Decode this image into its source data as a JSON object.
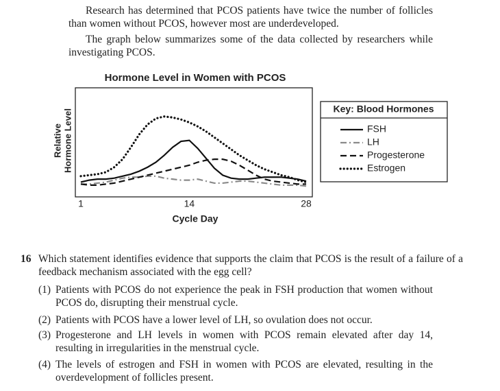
{
  "intro": [
    "Research has determined that PCOS patients have twice the number of follicles than women without PCOS, however most are underdeveloped.",
    "The graph below summarizes some of the data collected by researchers while investigating PCOS."
  ],
  "chart_data": {
    "type": "line",
    "title": "Hormone Level in Women with PCOS",
    "xlabel": "Cycle Day",
    "ylabel": [
      "Relative",
      "Hormone Level"
    ],
    "x": [
      1,
      2,
      3,
      4,
      5,
      6,
      7,
      8,
      9,
      10,
      11,
      12,
      13,
      14,
      15,
      16,
      17,
      18,
      19,
      20,
      21,
      22,
      23,
      24,
      25,
      26,
      27,
      28
    ],
    "xlim": [
      1,
      28
    ],
    "xticks": [
      1,
      14,
      28
    ],
    "ylim": [
      0,
      100
    ],
    "legend_title": "Key: Blood Hormones",
    "series": [
      {
        "name": "FSH",
        "color": "#111111",
        "linestyle": "solid",
        "values": [
          10,
          12,
          13,
          13,
          14,
          16,
          18,
          21,
          25,
          30,
          37,
          45,
          51,
          52,
          44,
          34,
          24,
          17,
          14,
          13,
          13,
          14,
          15,
          15,
          15,
          14,
          13,
          11
        ]
      },
      {
        "name": "LH",
        "color": "#8a8a8a",
        "linestyle": "dashdot",
        "values": [
          8,
          8,
          9,
          10,
          12,
          14,
          15,
          15,
          16,
          16,
          14,
          13,
          12,
          12,
          13,
          11,
          9,
          9,
          10,
          11,
          11,
          10,
          9,
          8,
          7,
          7,
          7,
          6
        ]
      },
      {
        "name": "Progesterone",
        "color": "#111111",
        "linestyle": "dashed",
        "values": [
          8,
          7,
          7,
          8,
          9,
          11,
          13,
          15,
          17,
          19,
          21,
          23,
          25,
          27,
          30,
          32,
          33,
          33,
          31,
          27,
          22,
          17,
          13,
          11,
          10,
          9,
          8,
          8
        ]
      },
      {
        "name": "Estrogen",
        "color": "#111111",
        "linestyle": "dotted",
        "values": [
          16,
          17,
          18,
          20,
          25,
          33,
          45,
          58,
          68,
          74,
          76,
          75,
          73,
          70,
          66,
          61,
          55,
          49,
          43,
          37,
          32,
          27,
          23,
          20,
          17,
          15,
          12,
          10
        ]
      }
    ]
  },
  "question": {
    "number": "16",
    "stem": "Which statement identifies evidence that supports the claim that PCOS is the result of a failure of a feedback mechanism associated with the egg cell?",
    "options": [
      {
        "label": "(1)",
        "text": "Patients with PCOS do not experience the peak in FSH production that women without PCOS do, disrupting their menstrual cycle."
      },
      {
        "label": "(2)",
        "text": "Patients with PCOS have a lower level of LH, so ovulation does not occur."
      },
      {
        "label": "(3)",
        "text": "Progesterone and LH levels in women with PCOS remain elevated after day 14, resulting in irregularities in the menstrual cycle."
      },
      {
        "label": "(4)",
        "text": "The levels of estrogen and FSH in women with PCOS are elevated, resulting in the overdevelopment of follicles present."
      }
    ]
  }
}
